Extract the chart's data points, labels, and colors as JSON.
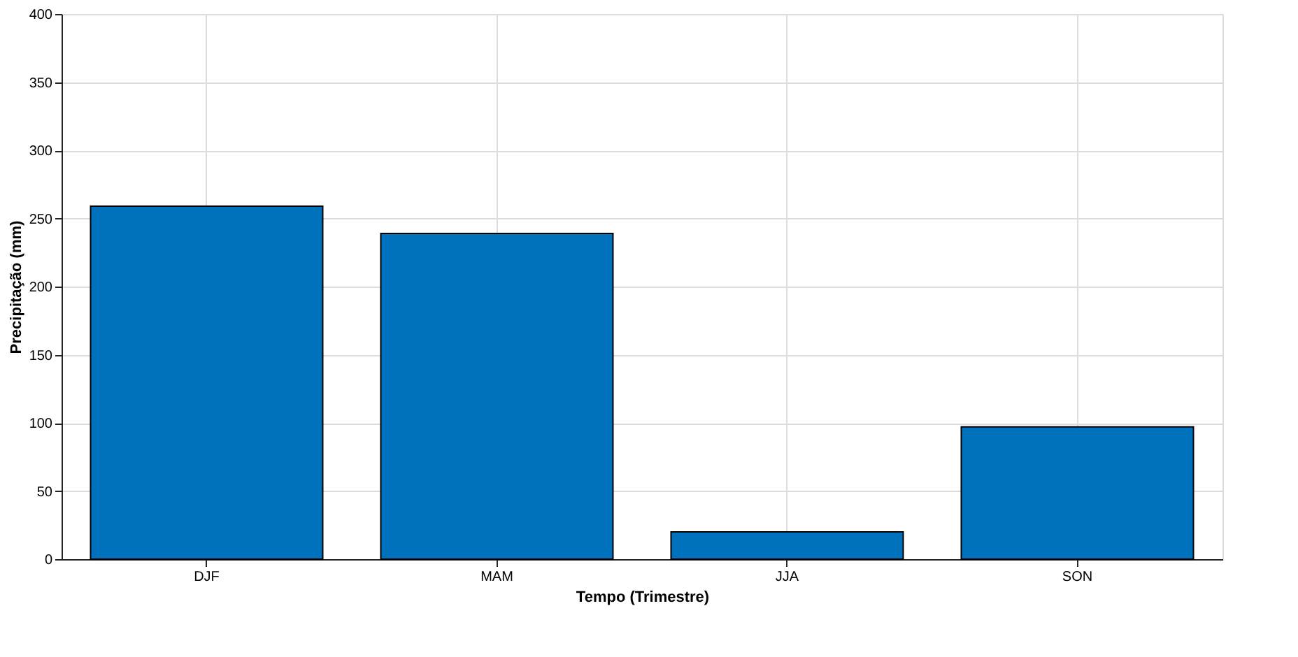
{
  "chart_data": {
    "type": "bar",
    "xlabel": "Tempo (Trimestre)",
    "ylabel": "Precipitação (mm)",
    "categories": [
      "DJF",
      "MAM",
      "JJA",
      "SON"
    ],
    "values": [
      259,
      239,
      20,
      97
    ],
    "color": "#0072bd",
    "ylim": [
      0,
      400
    ],
    "yticks": [
      0,
      50,
      100,
      150,
      200,
      250,
      300,
      350,
      400
    ],
    "grid": true
  }
}
